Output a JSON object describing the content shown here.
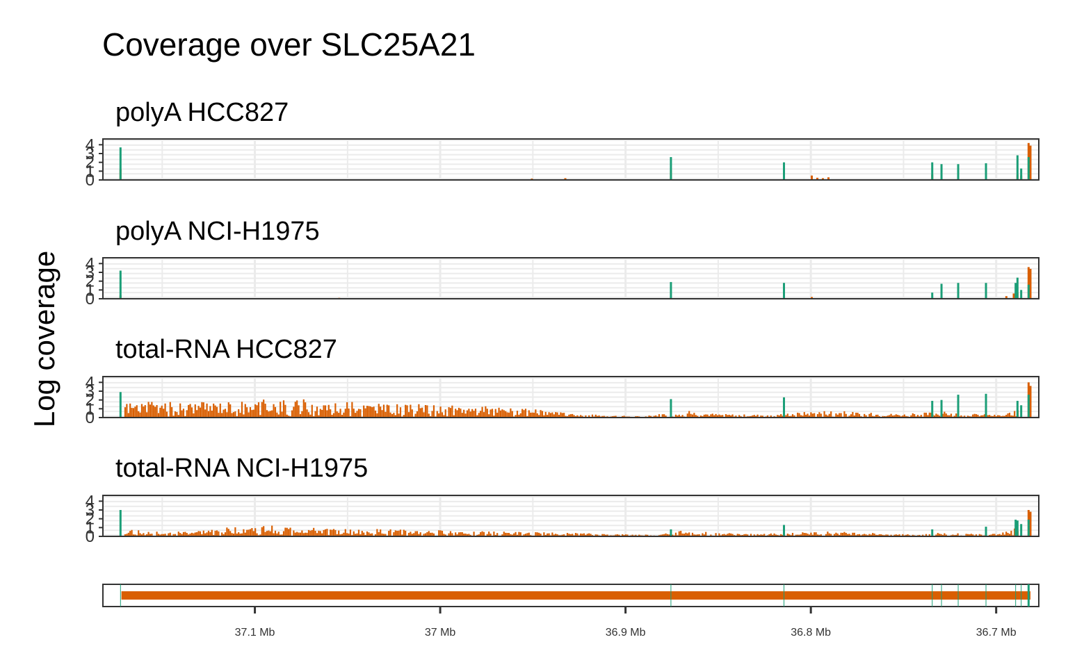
{
  "chart_data": {
    "type": "bar",
    "title": "Coverage over SLC25A21",
    "ylabel": "Log coverage",
    "xlabel": "",
    "xlim": [
      37.182,
      36.677
    ],
    "x_reversed": true,
    "x_ticks": [
      {
        "value": 37.1,
        "label": "37.1 Mb"
      },
      {
        "value": 37.0,
        "label": "37 Mb"
      },
      {
        "value": 36.9,
        "label": "36.9 Mb"
      },
      {
        "value": 36.8,
        "label": "36.8 Mb"
      },
      {
        "value": 36.7,
        "label": "36.7 Mb"
      }
    ],
    "ylim": [
      0,
      4.5
    ],
    "y_ticks": [
      "0",
      "1",
      "2",
      "3",
      "4"
    ],
    "grid": true,
    "colors": {
      "exon": "#1b9e77",
      "intron": "#d95f02",
      "frame": "#333333",
      "grid": "#ebebeb"
    },
    "panels": [
      {
        "name": "polyA HCC827",
        "exon_bars": [
          [
            37.1725,
            3.7
          ],
          [
            36.8755,
            2.6
          ],
          [
            36.8145,
            2.0
          ],
          [
            36.7345,
            2.0
          ],
          [
            36.7295,
            1.8
          ],
          [
            36.7205,
            1.8
          ],
          [
            36.7055,
            1.9
          ],
          [
            36.6885,
            2.8
          ],
          [
            36.6865,
            1.3
          ],
          [
            36.6825,
            2.6
          ]
        ],
        "intron_bars": [
          [
            37.1725,
            1.2
          ],
          [
            36.9505,
            0.15
          ],
          [
            36.9325,
            0.2
          ],
          [
            36.8755,
            1.1
          ],
          [
            36.7995,
            0.5
          ],
          [
            36.7965,
            0.25
          ],
          [
            36.7935,
            0.2
          ],
          [
            36.7905,
            0.3
          ],
          [
            36.7345,
            0.6
          ],
          [
            36.6885,
            0.6
          ],
          [
            36.6865,
            0.5
          ],
          [
            36.6825,
            4.2
          ],
          [
            36.6815,
            3.9
          ]
        ]
      },
      {
        "name": "polyA NCI-H1975",
        "exon_bars": [
          [
            37.1725,
            3.2
          ],
          [
            36.8755,
            1.9
          ],
          [
            36.8145,
            1.8
          ],
          [
            36.7345,
            0.7
          ],
          [
            36.7295,
            1.7
          ],
          [
            36.7205,
            1.8
          ],
          [
            36.7055,
            1.8
          ],
          [
            36.6895,
            1.8
          ],
          [
            36.6885,
            2.4
          ],
          [
            36.6865,
            1.0
          ],
          [
            36.6825,
            1.6
          ]
        ],
        "intron_bars": [
          [
            37.1725,
            0.4
          ],
          [
            37.0545,
            0.1
          ],
          [
            36.7995,
            0.2
          ],
          [
            36.6945,
            0.3
          ],
          [
            36.6905,
            0.6
          ],
          [
            36.6885,
            0.7
          ],
          [
            36.6825,
            3.6
          ],
          [
            36.6815,
            3.4
          ]
        ]
      },
      {
        "name": "total-RNA HCC827",
        "exon_bars": [
          [
            37.1725,
            2.9
          ],
          [
            36.8755,
            2.1
          ],
          [
            36.8145,
            2.3
          ],
          [
            36.7345,
            1.9
          ],
          [
            36.7295,
            2.0
          ],
          [
            36.7205,
            2.6
          ],
          [
            36.7055,
            2.7
          ],
          [
            36.6885,
            1.9
          ],
          [
            36.6865,
            1.4
          ],
          [
            36.6825,
            2.6
          ]
        ],
        "intron_profile": [
          [
            37.17,
            1.3
          ],
          [
            37.15,
            1.3
          ],
          [
            37.13,
            1.3
          ],
          [
            37.11,
            1.4
          ],
          [
            37.09,
            1.6
          ],
          [
            37.07,
            1.5
          ],
          [
            37.05,
            1.3
          ],
          [
            37.03,
            1.1
          ],
          [
            37.01,
            1.1
          ],
          [
            36.99,
            1.0
          ],
          [
            36.97,
            0.9
          ],
          [
            36.95,
            0.7
          ],
          [
            36.93,
            0.35
          ],
          [
            36.91,
            0.2
          ],
          [
            36.89,
            0.1
          ],
          [
            36.87,
            0.6
          ],
          [
            36.85,
            0.3
          ],
          [
            36.83,
            0.25
          ],
          [
            36.81,
            0.4
          ],
          [
            36.79,
            0.6
          ],
          [
            36.77,
            0.4
          ],
          [
            36.75,
            0.3
          ],
          [
            36.73,
            0.5
          ],
          [
            36.71,
            0.3
          ],
          [
            36.695,
            0.2
          ],
          [
            36.688,
            1.2
          ]
        ],
        "intron_bars": [
          [
            36.6825,
            4.0
          ],
          [
            36.6815,
            3.6
          ]
        ]
      },
      {
        "name": "total-RNA NCI-H1975",
        "exon_bars": [
          [
            37.1725,
            3.0
          ],
          [
            36.8755,
            0.8
          ],
          [
            36.8145,
            1.3
          ],
          [
            36.7345,
            0.8
          ],
          [
            36.7055,
            1.1
          ],
          [
            36.6895,
            1.9
          ],
          [
            36.6885,
            1.8
          ],
          [
            36.6865,
            1.4
          ],
          [
            36.6825,
            1.9
          ]
        ],
        "intron_profile": [
          [
            37.17,
            0.6
          ],
          [
            37.15,
            0.35
          ],
          [
            37.13,
            0.5
          ],
          [
            37.11,
            0.8
          ],
          [
            37.09,
            0.9
          ],
          [
            37.07,
            0.7
          ],
          [
            37.05,
            0.6
          ],
          [
            37.03,
            0.6
          ],
          [
            37.01,
            0.5
          ],
          [
            36.99,
            0.5
          ],
          [
            36.97,
            0.4
          ],
          [
            36.95,
            0.35
          ],
          [
            36.93,
            0.3
          ],
          [
            36.91,
            0.2
          ],
          [
            36.89,
            0.15
          ],
          [
            36.87,
            0.5
          ],
          [
            36.85,
            0.3
          ],
          [
            36.83,
            0.2
          ],
          [
            36.81,
            0.3
          ],
          [
            36.79,
            0.4
          ],
          [
            36.77,
            0.3
          ],
          [
            36.75,
            0.2
          ],
          [
            36.73,
            0.3
          ],
          [
            36.71,
            0.2
          ],
          [
            36.695,
            0.4
          ],
          [
            36.688,
            1.1
          ]
        ],
        "intron_bars": [
          [
            36.6825,
            3.0
          ],
          [
            36.6815,
            2.8
          ]
        ]
      }
    ],
    "gene_track": {
      "body": [
        37.172,
        36.6815
      ],
      "exon_lines": [
        37.1725,
        36.8755,
        36.8145,
        36.7345,
        36.7295,
        36.7205,
        36.7055,
        36.6895,
        36.6865,
        36.6825
      ]
    }
  }
}
